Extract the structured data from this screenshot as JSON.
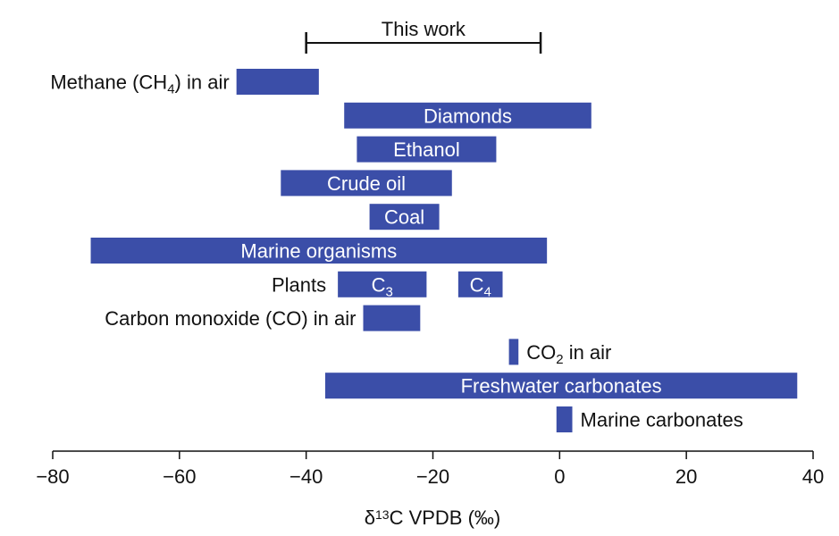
{
  "chart_data": {
    "type": "bar",
    "orientation": "horizontal-range",
    "title": "",
    "xlabel": "δ13C VPDB (‰)",
    "xlabel_parts": {
      "pre": "δ",
      "sup": "13",
      "post": "C VPDB (‰)"
    },
    "xlim": [
      -80,
      40
    ],
    "xticks": [
      -80,
      -60,
      -40,
      -20,
      0,
      20,
      40
    ],
    "xtick_labels": [
      "−80",
      "−60",
      "−40",
      "−20",
      "0",
      "20",
      "40"
    ],
    "bar_color": "#3b4ea8",
    "range_marker": {
      "label": "This work",
      "start": -40,
      "end": -3
    },
    "bars": [
      {
        "label": "Methane (CH4) in air",
        "label_parts": {
          "pre": "Methane (CH",
          "sub": "4",
          "post": ") in air"
        },
        "start": -51,
        "end": -38,
        "label_pos": "left"
      },
      {
        "label": "Diamonds",
        "start": -34,
        "end": 5,
        "label_pos": "inside"
      },
      {
        "label": "Ethanol",
        "start": -32,
        "end": -10,
        "label_pos": "inside"
      },
      {
        "label": "Crude oil",
        "start": -44,
        "end": -17,
        "label_pos": "inside"
      },
      {
        "label": "Coal",
        "start": -30,
        "end": -19,
        "label_pos": "inside"
      },
      {
        "label": "Marine organisms",
        "start": -74,
        "end": -2,
        "label_pos": "inside"
      },
      {
        "label": "C3",
        "label_parts": {
          "pre": "C",
          "sub": "3",
          "post": ""
        },
        "start": -35,
        "end": -21,
        "label_pos": "inside",
        "group": "Plants"
      },
      {
        "label": "C4",
        "label_parts": {
          "pre": "C",
          "sub": "4",
          "post": ""
        },
        "start": -16,
        "end": -9,
        "label_pos": "inside",
        "group": "Plants"
      },
      {
        "label": "Carbon monoxide (CO) in air",
        "start": -31,
        "end": -22,
        "label_pos": "left"
      },
      {
        "label": "CO2 in air",
        "label_parts": {
          "pre": "CO",
          "sub": "2",
          "post": " in air"
        },
        "start": -8,
        "end": -6.5,
        "label_pos": "right"
      },
      {
        "label": "Freshwater carbonates",
        "start": -37,
        "end": 37.5,
        "label_pos": "inside"
      },
      {
        "label": "Marine carbonates",
        "start": -0.5,
        "end": 2,
        "label_pos": "right"
      }
    ],
    "rows": [
      {
        "bars": [
          0
        ]
      },
      {
        "bars": [
          1
        ]
      },
      {
        "bars": [
          2
        ]
      },
      {
        "bars": [
          3
        ]
      },
      {
        "bars": [
          4
        ]
      },
      {
        "bars": [
          5
        ]
      },
      {
        "bars": [
          6,
          7
        ],
        "label": "Plants"
      },
      {
        "bars": [
          8
        ]
      },
      {
        "bars": [
          9
        ]
      },
      {
        "bars": [
          10
        ]
      },
      {
        "bars": [
          11
        ]
      }
    ]
  }
}
